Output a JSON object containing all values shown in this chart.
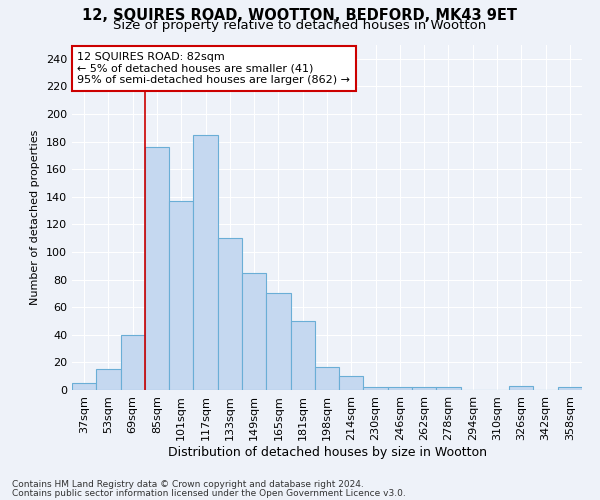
{
  "title1": "12, SQUIRES ROAD, WOOTTON, BEDFORD, MK43 9ET",
  "title2": "Size of property relative to detached houses in Wootton",
  "xlabel": "Distribution of detached houses by size in Wootton",
  "ylabel": "Number of detached properties",
  "categories": [
    "37sqm",
    "53sqm",
    "69sqm",
    "85sqm",
    "101sqm",
    "117sqm",
    "133sqm",
    "149sqm",
    "165sqm",
    "181sqm",
    "198sqm",
    "214sqm",
    "230sqm",
    "246sqm",
    "262sqm",
    "278sqm",
    "294sqm",
    "310sqm",
    "326sqm",
    "342sqm",
    "358sqm"
  ],
  "values": [
    5,
    15,
    40,
    176,
    137,
    185,
    110,
    85,
    70,
    50,
    17,
    10,
    2,
    2,
    2,
    2,
    0,
    0,
    3,
    0,
    2
  ],
  "bar_color": "#c5d8f0",
  "bar_edge_color": "#6aaed6",
  "vline_color": "#cc0000",
  "vline_index": 3,
  "annotation_line1": "12 SQUIRES ROAD: 82sqm",
  "annotation_line2": "← 5% of detached houses are smaller (41)",
  "annotation_line3": "95% of semi-detached houses are larger (862) →",
  "annotation_box_facecolor": "white",
  "annotation_box_edgecolor": "#cc0000",
  "ylim": [
    0,
    250
  ],
  "yticks": [
    0,
    20,
    40,
    60,
    80,
    100,
    120,
    140,
    160,
    180,
    200,
    220,
    240
  ],
  "footnote1": "Contains HM Land Registry data © Crown copyright and database right 2024.",
  "footnote2": "Contains public sector information licensed under the Open Government Licence v3.0.",
  "background_color": "#eef2f9",
  "grid_color": "#ffffff",
  "title1_fontsize": 10.5,
  "title2_fontsize": 9.5,
  "xlabel_fontsize": 9,
  "ylabel_fontsize": 8,
  "tick_fontsize": 8,
  "annotation_fontsize": 8,
  "footnote_fontsize": 6.5
}
